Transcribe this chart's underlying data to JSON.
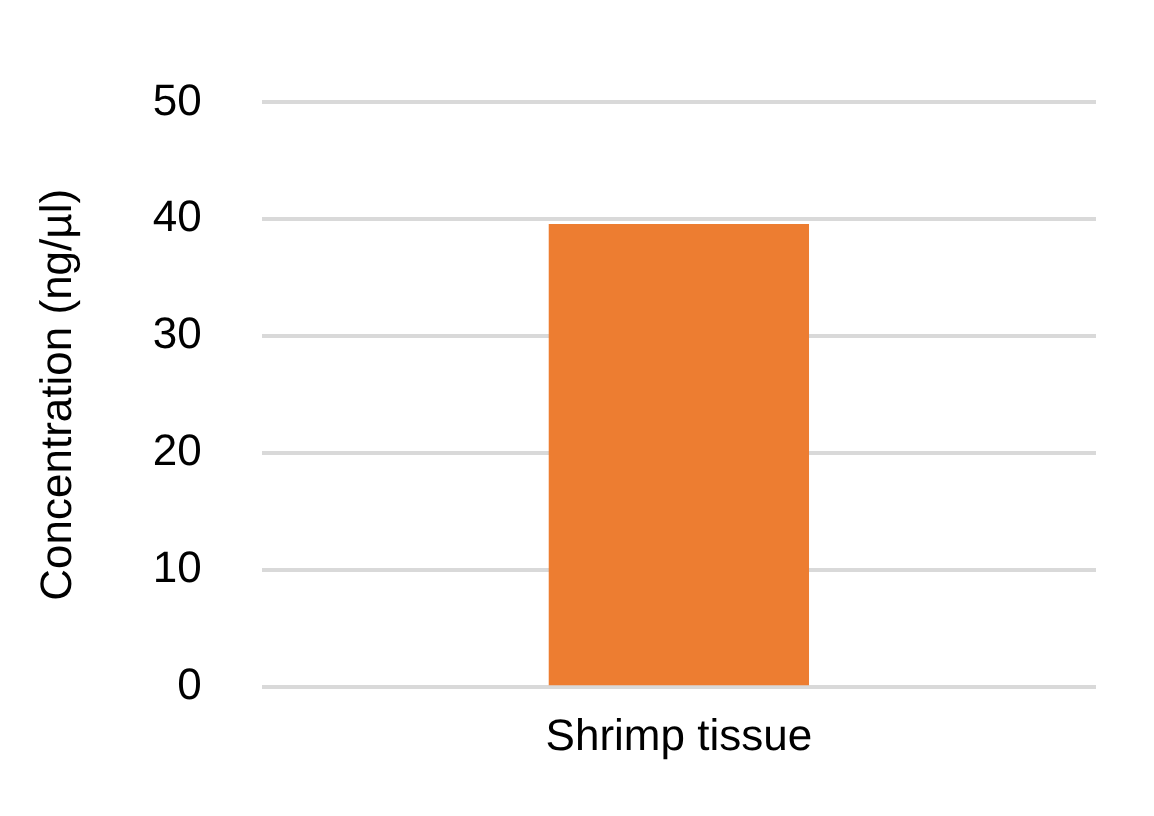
{
  "chart_data": {
    "type": "bar",
    "ylabel": "Concentration (ng/µl)",
    "categories": [
      "Shrimp tissue"
    ],
    "values": [
      39.6
    ],
    "color": "#ed7d31",
    "ylim": [
      0,
      50
    ],
    "yticks": [
      0,
      10,
      20,
      30,
      40,
      50
    ],
    "grid": "y",
    "legend": false
  }
}
